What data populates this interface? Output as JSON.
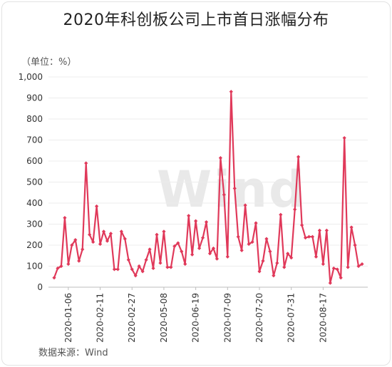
{
  "chart_data": {
    "type": "line",
    "title": "2020年科创板公司上市首日涨幅分布",
    "ylabel": "（单位：%）",
    "source": "数据来源：Wind",
    "watermark": "Wind",
    "ylim": [
      0,
      1000
    ],
    "yticks": [
      "0",
      "100",
      "200",
      "300",
      "400",
      "500",
      "600",
      "700",
      "800",
      "900",
      "1,000"
    ],
    "xtick_labels": [
      "2020-01-06",
      "2020-02-11",
      "2020-02-27",
      "2020-05-08",
      "2020-06-19",
      "2020-07-09",
      "2020-07-20",
      "2020-07-31",
      "2020-08-17"
    ],
    "xtick_indices": [
      4,
      13,
      22,
      31,
      40,
      49,
      58,
      67,
      76
    ],
    "grid": true,
    "color": "#e0395a",
    "series": [
      {
        "values": [
          45,
          90,
          100,
          330,
          110,
          200,
          225,
          125,
          180,
          590,
          250,
          215,
          385,
          205,
          265,
          220,
          255,
          85,
          85,
          265,
          230,
          130,
          85,
          55,
          100,
          75,
          130,
          180,
          90,
          250,
          115,
          265,
          95,
          95,
          195,
          210,
          170,
          110,
          340,
          155,
          315,
          185,
          235,
          310,
          160,
          185,
          135,
          615,
          440,
          145,
          930,
          470,
          240,
          175,
          390,
          205,
          215,
          305,
          75,
          125,
          230,
          170,
          55,
          115,
          345,
          95,
          160,
          140,
          370,
          620,
          295,
          235,
          240,
          240,
          145,
          270,
          110,
          270,
          20,
          90,
          85,
          45,
          710,
          95,
          285,
          200,
          100,
          110
        ]
      }
    ]
  }
}
